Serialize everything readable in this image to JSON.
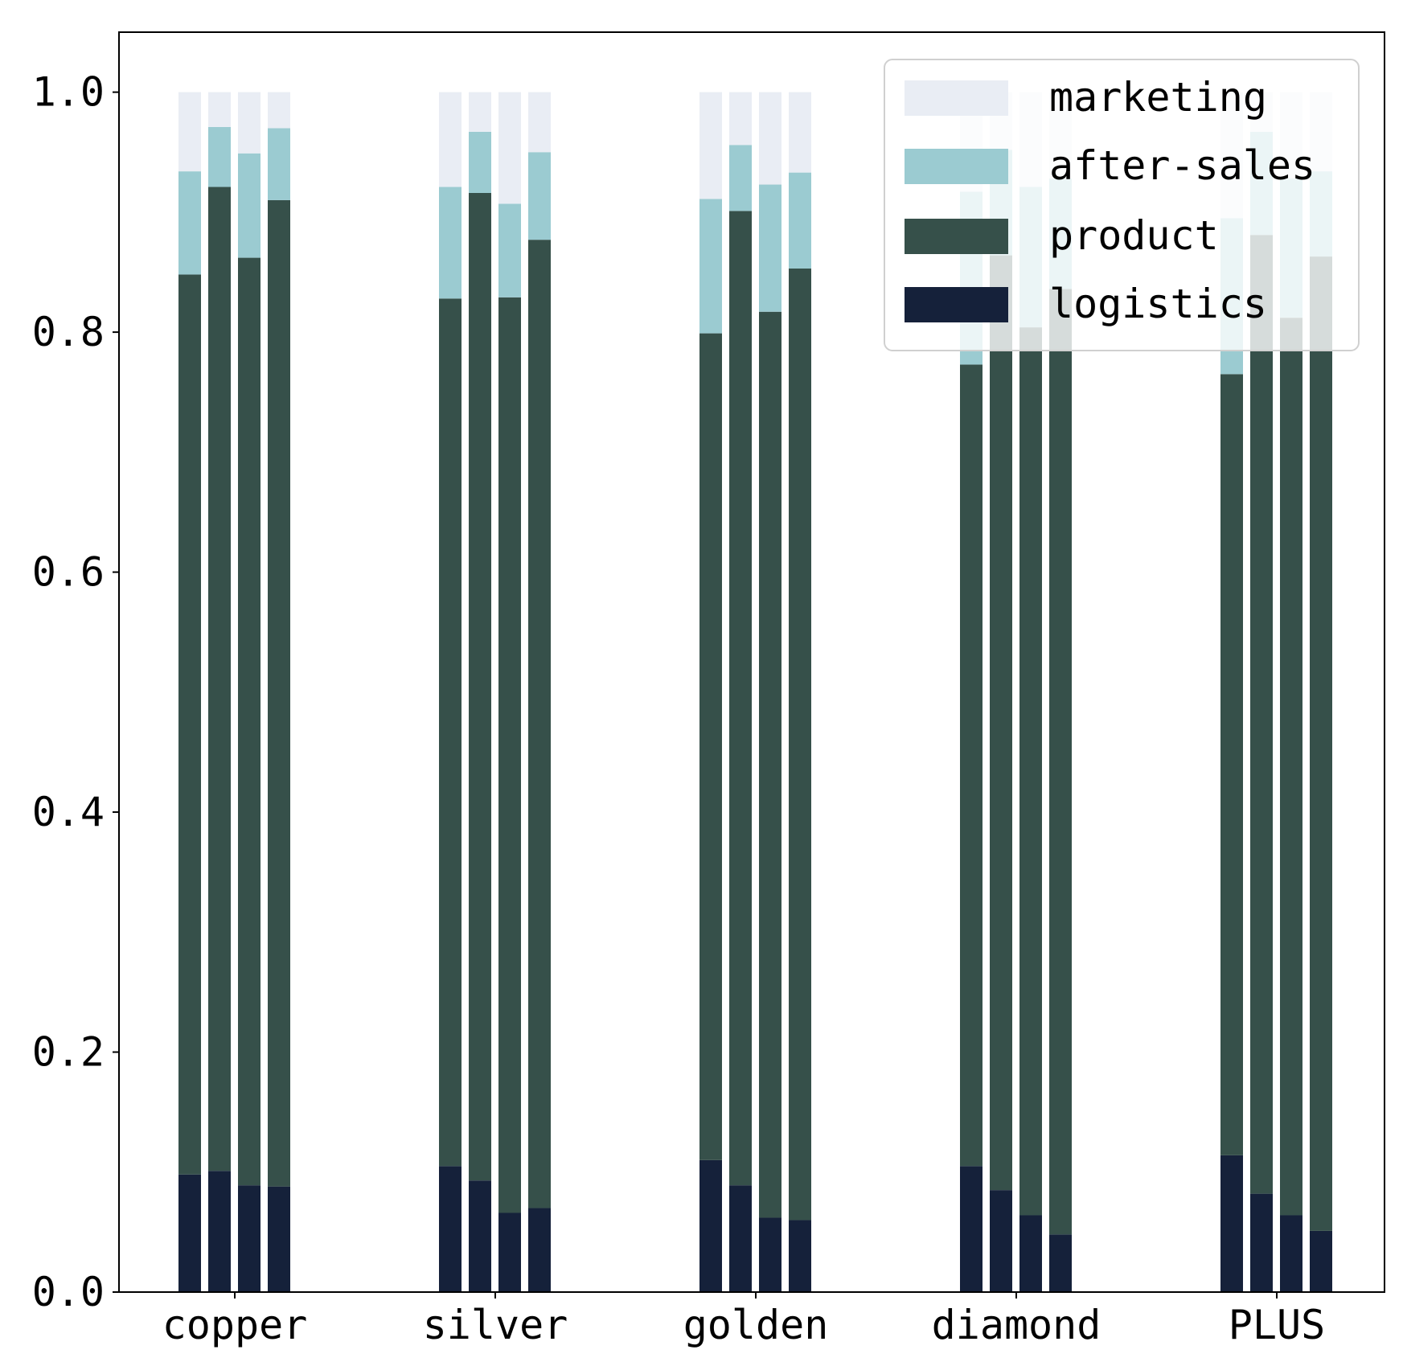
{
  "chart_data": {
    "type": "bar",
    "stacked": true,
    "grouped": true,
    "title": "",
    "xlabel": "",
    "ylabel": "",
    "ylim": [
      0,
      1.05
    ],
    "yticks": [
      "0.0",
      "0.2",
      "0.4",
      "0.6",
      "0.8",
      "1.0"
    ],
    "ytick_values": [
      0.0,
      0.2,
      0.4,
      0.6,
      0.8,
      1.0
    ],
    "categories": [
      "copper",
      "silver",
      "golden",
      "diamond",
      "PLUS"
    ],
    "bars_per_category": 4,
    "legend_position": "top-right",
    "series": [
      {
        "name": "logistics",
        "color": "#15213a",
        "values": [
          [
            0.098,
            0.101,
            0.089,
            0.088
          ],
          [
            0.105,
            0.093,
            0.066,
            0.07
          ],
          [
            0.11,
            0.089,
            0.062,
            0.06
          ],
          [
            0.105,
            0.085,
            0.064,
            0.048
          ],
          [
            0.114,
            0.082,
            0.064,
            0.051
          ]
        ]
      },
      {
        "name": "product",
        "color": "#36504a",
        "values": [
          [
            0.75,
            0.82,
            0.773,
            0.822
          ],
          [
            0.723,
            0.823,
            0.763,
            0.807
          ],
          [
            0.689,
            0.812,
            0.755,
            0.793
          ],
          [
            0.668,
            0.779,
            0.74,
            0.788
          ],
          [
            0.651,
            0.799,
            0.748,
            0.812
          ]
        ]
      },
      {
        "name": "after-sales",
        "color": "#9bcbd1",
        "values": [
          [
            0.086,
            0.05,
            0.087,
            0.06
          ],
          [
            0.093,
            0.051,
            0.078,
            0.073
          ],
          [
            0.112,
            0.055,
            0.106,
            0.08
          ],
          [
            0.144,
            0.088,
            0.117,
            0.092
          ],
          [
            0.13,
            0.086,
            0.116,
            0.071
          ]
        ]
      },
      {
        "name": "marketing",
        "color": "#e9edf4",
        "values": [
          [
            0.066,
            0.029,
            0.051,
            0.03
          ],
          [
            0.079,
            0.033,
            0.093,
            0.05
          ],
          [
            0.089,
            0.044,
            0.077,
            0.067
          ],
          [
            0.083,
            0.048,
            0.079,
            0.072
          ],
          [
            0.105,
            0.033,
            0.072,
            0.066
          ]
        ]
      }
    ],
    "legend_order": [
      "marketing",
      "after-sales",
      "product",
      "logistics"
    ]
  }
}
